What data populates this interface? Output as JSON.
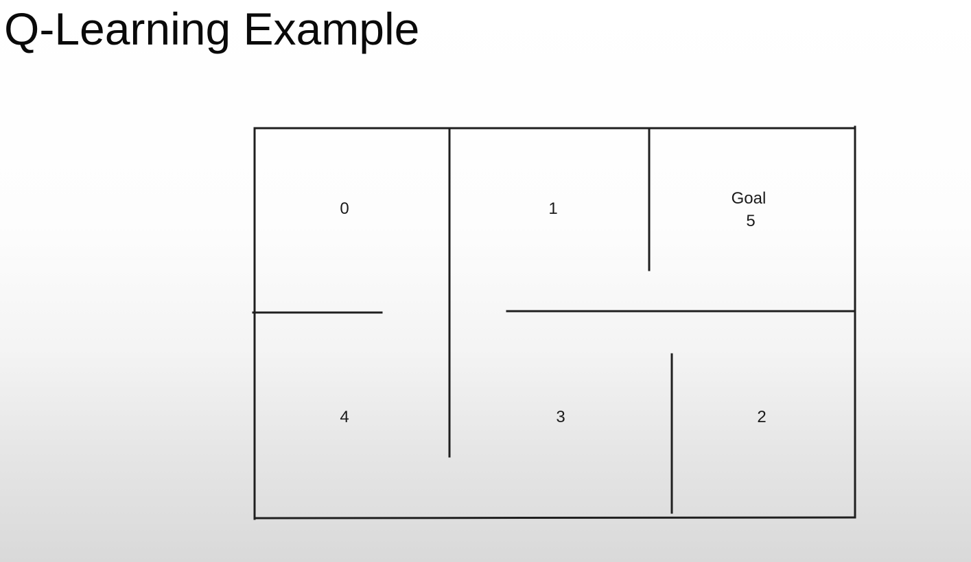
{
  "title": "Q-Learning Example",
  "rooms": [
    {
      "id": "room-0",
      "label": "0"
    },
    {
      "id": "room-1",
      "label": "1"
    },
    {
      "id": "room-goal",
      "label": "Goal",
      "sublabel": "5"
    },
    {
      "id": "room-4",
      "label": "4"
    },
    {
      "id": "room-3",
      "label": "3"
    },
    {
      "id": "room-2",
      "label": "2"
    }
  ],
  "colors": {
    "wall": "#1f1f1f",
    "text": "#1a1a1a"
  }
}
